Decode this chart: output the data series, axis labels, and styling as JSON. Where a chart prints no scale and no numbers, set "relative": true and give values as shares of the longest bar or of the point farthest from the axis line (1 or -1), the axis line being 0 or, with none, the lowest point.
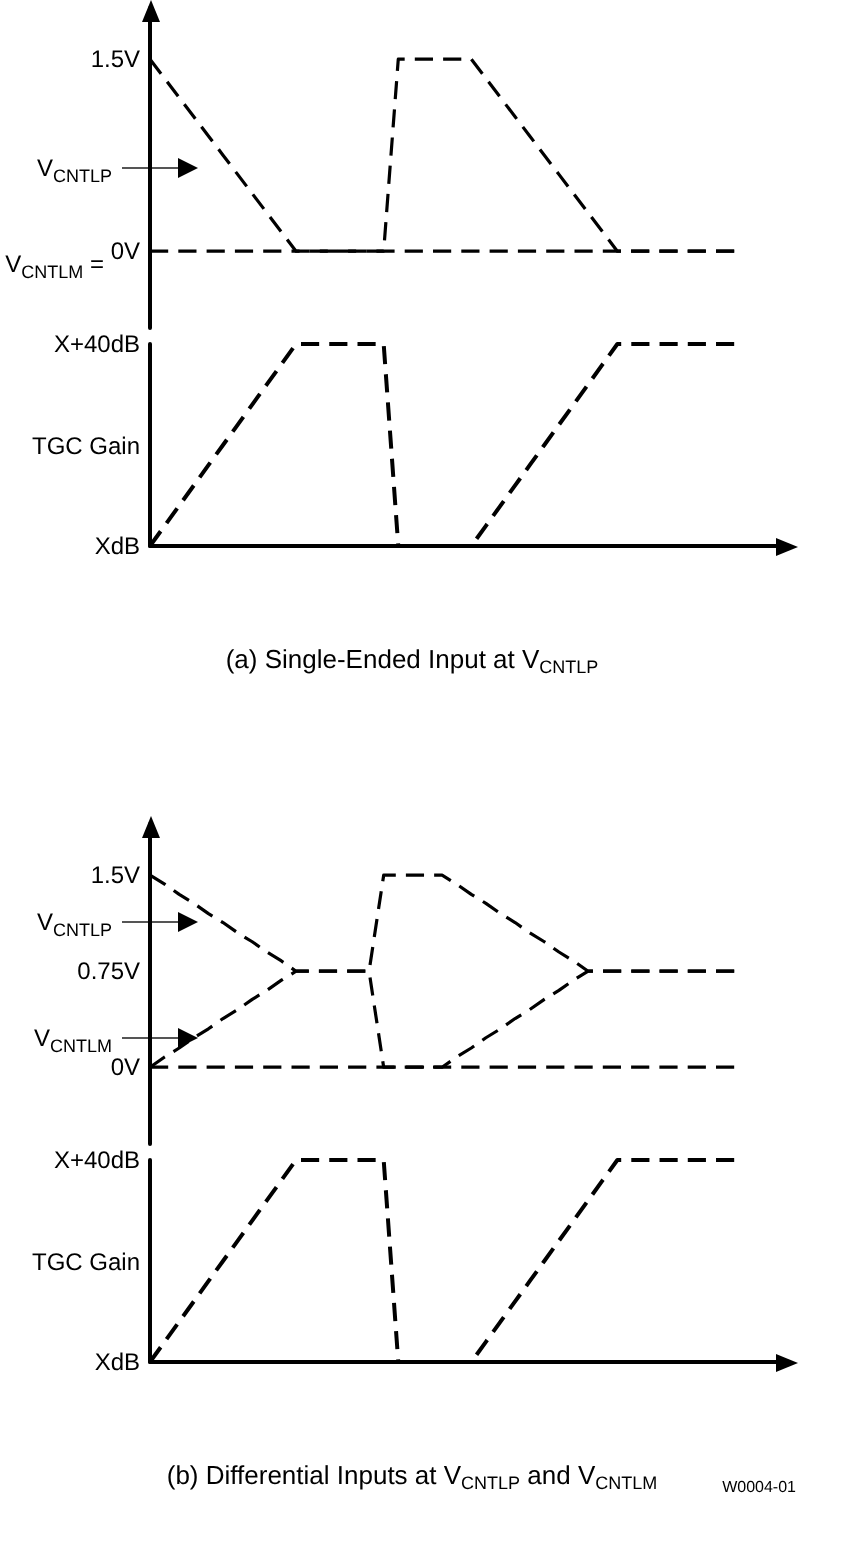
{
  "chart_data": [
    {
      "type": "line",
      "line_style": "dashed",
      "marker": "none",
      "categories": [
        null,
        null,
        null,
        null,
        null,
        null,
        null,
        null,
        null,
        null,
        null,
        null,
        null,
        null,
        null,
        null,
        null,
        null,
        null,
        null,
        null,
        null,
        null,
        null,
        null,
        null,
        null,
        null,
        null,
        null,
        null,
        null,
        null,
        null,
        null,
        null,
        null,
        null,
        null,
        null,
        null,
        null,
        null,
        null
      ],
      "ylim": [
        -0.6,
        1.9
      ],
      "yticks": [
        {
          "value": 1.5,
          "label": "1.5V"
        },
        {
          "value": 0,
          "label": "0V"
        }
      ],
      "annotations": [
        "V$_{CNTLP}$",
        "V$_{CNTLM}$ ="
      ],
      "series": [
        {
          "color": "#000000",
          "values": [
            0,
            0,
            0,
            0,
            0,
            0,
            0,
            0,
            0,
            0,
            0,
            0,
            0,
            0,
            0,
            0,
            0,
            0,
            0,
            0,
            0,
            0,
            0,
            0,
            0,
            0,
            0,
            0,
            0,
            0,
            0,
            0,
            0,
            0,
            0,
            0,
            0,
            0,
            0,
            0,
            0,
            null,
            null,
            null
          ]
        },
        {
          "color": "#000000",
          "values": [
            1.5,
            1.35,
            1.2,
            1.05,
            0.9,
            0.75,
            0.6,
            0.45,
            0.3,
            0.15,
            0,
            0,
            0,
            0,
            0,
            0,
            0,
            1.5,
            1.5,
            1.5,
            1.5,
            1.5,
            1.5,
            1.35,
            1.2,
            1.05,
            0.9,
            0.75,
            0.6,
            0.45,
            0.3,
            0.15,
            0,
            0,
            0,
            0,
            0,
            0,
            0,
            0,
            0,
            null,
            null,
            null
          ]
        }
      ]
    },
    {
      "type": "line",
      "title": "(a) Single-Ended Input at V$_{CNTLP}$",
      "ylabel": "TGC Gain",
      "relative": true,
      "line_style": "dashed",
      "marker": "none",
      "categories": [
        null,
        null,
        null,
        null,
        null,
        null,
        null,
        null,
        null,
        null,
        null,
        null,
        null,
        null,
        null,
        null,
        null,
        null,
        null,
        null,
        null,
        null,
        null,
        null,
        null,
        null,
        null,
        null,
        null,
        null,
        null,
        null,
        null,
        null,
        null,
        null,
        null,
        null,
        null,
        null,
        null,
        null,
        null,
        null
      ],
      "annotations": [
        "X+40dB",
        "XdB"
      ],
      "series": [
        {
          "color": "#000000",
          "values": [
            0,
            0.1,
            0.2,
            0.3,
            0.4,
            0.5,
            0.6,
            0.7,
            0.8,
            0.9,
            1,
            1,
            1,
            1,
            1,
            1,
            1,
            0,
            0,
            0,
            0,
            0,
            0,
            0.1,
            0.2,
            0.3,
            0.4,
            0.5,
            0.6,
            0.7,
            0.8,
            0.9,
            1,
            1,
            1,
            1,
            1,
            1,
            1,
            1,
            1,
            null,
            null,
            null
          ]
        }
      ]
    },
    {
      "type": "line",
      "line_style": "dashed",
      "marker": "none",
      "categories": [
        null,
        null,
        null,
        null,
        null,
        null,
        null,
        null,
        null,
        null,
        null,
        null,
        null,
        null,
        null,
        null,
        null,
        null,
        null,
        null,
        null,
        null,
        null,
        null,
        null,
        null,
        null,
        null,
        null,
        null,
        null,
        null,
        null,
        null,
        null,
        null,
        null,
        null,
        null,
        null,
        null,
        null,
        null,
        null
      ],
      "ylim": [
        -0.6,
        1.9
      ],
      "yticks": [
        {
          "value": 1.5,
          "label": "1.5V"
        },
        {
          "value": 0.75,
          "label": "0.75V"
        },
        {
          "value": 0,
          "label": "0V"
        }
      ],
      "annotations": [
        "V$_{CNTLP}$",
        "V$_{CNTLM}$"
      ],
      "series": [
        {
          "color": "#000000",
          "values": [
            0,
            0,
            0,
            0,
            0,
            0,
            0,
            0,
            0,
            0,
            0,
            0,
            0,
            0,
            0,
            0,
            0,
            0,
            0,
            0,
            0,
            0,
            0,
            0,
            0,
            0,
            0,
            0,
            0,
            0,
            0,
            0,
            0,
            0,
            0,
            0,
            0,
            0,
            0,
            0,
            0,
            null,
            null,
            null
          ]
        },
        {
          "color": "#000000",
          "values": [
            1.5,
            1.43,
            1.35,
            1.28,
            1.2,
            1.13,
            1.05,
            0.98,
            0.9,
            0.83,
            0.75,
            0.75,
            0.75,
            0.75,
            0.75,
            0.75,
            1.5,
            1.5,
            1.5,
            1.5,
            1.5,
            1.43,
            1.35,
            1.28,
            1.2,
            1.13,
            1.05,
            0.98,
            0.9,
            0.83,
            0.75,
            0.75,
            0.75,
            0.75,
            0.75,
            0.75,
            0.75,
            0.75,
            0.75,
            0.75,
            0.75,
            null,
            null,
            null
          ]
        },
        {
          "color": "#000000",
          "values": [
            0,
            0.08,
            0.15,
            0.23,
            0.3,
            0.38,
            0.45,
            0.53,
            0.6,
            0.68,
            0.75,
            0.75,
            0.75,
            0.75,
            0.75,
            0.75,
            0,
            0,
            0,
            0,
            0,
            0.08,
            0.15,
            0.23,
            0.3,
            0.38,
            0.45,
            0.53,
            0.6,
            0.68,
            0.75,
            0.75,
            0.75,
            0.75,
            0.75,
            0.75,
            0.75,
            0.75,
            0.75,
            0.75,
            0.75,
            null,
            null,
            null
          ]
        }
      ]
    },
    {
      "type": "line",
      "title": "(b) Differential Inputs at V$_{CNTLP}$ and V$_{CNTLM}$",
      "ylabel": "TGC Gain",
      "relative": true,
      "line_style": "dashed",
      "marker": "none",
      "categories": [
        null,
        null,
        null,
        null,
        null,
        null,
        null,
        null,
        null,
        null,
        null,
        null,
        null,
        null,
        null,
        null,
        null,
        null,
        null,
        null,
        null,
        null,
        null,
        null,
        null,
        null,
        null,
        null,
        null,
        null,
        null,
        null,
        null,
        null,
        null,
        null,
        null,
        null,
        null,
        null,
        null,
        null,
        null,
        null
      ],
      "annotations": [
        "X+40dB",
        "XdB",
        "W0004-01"
      ],
      "series": [
        {
          "color": "#000000",
          "values": [
            0,
            0.1,
            0.2,
            0.3,
            0.4,
            0.5,
            0.6,
            0.7,
            0.8,
            0.9,
            1,
            1,
            1,
            1,
            1,
            1,
            1,
            0,
            0,
            0,
            0,
            0,
            0,
            0.1,
            0.2,
            0.3,
            0.4,
            0.5,
            0.6,
            0.7,
            0.8,
            0.9,
            1,
            1,
            1,
            1,
            1,
            1,
            1,
            1,
            1,
            null,
            null,
            null
          ]
        }
      ]
    }
  ]
}
